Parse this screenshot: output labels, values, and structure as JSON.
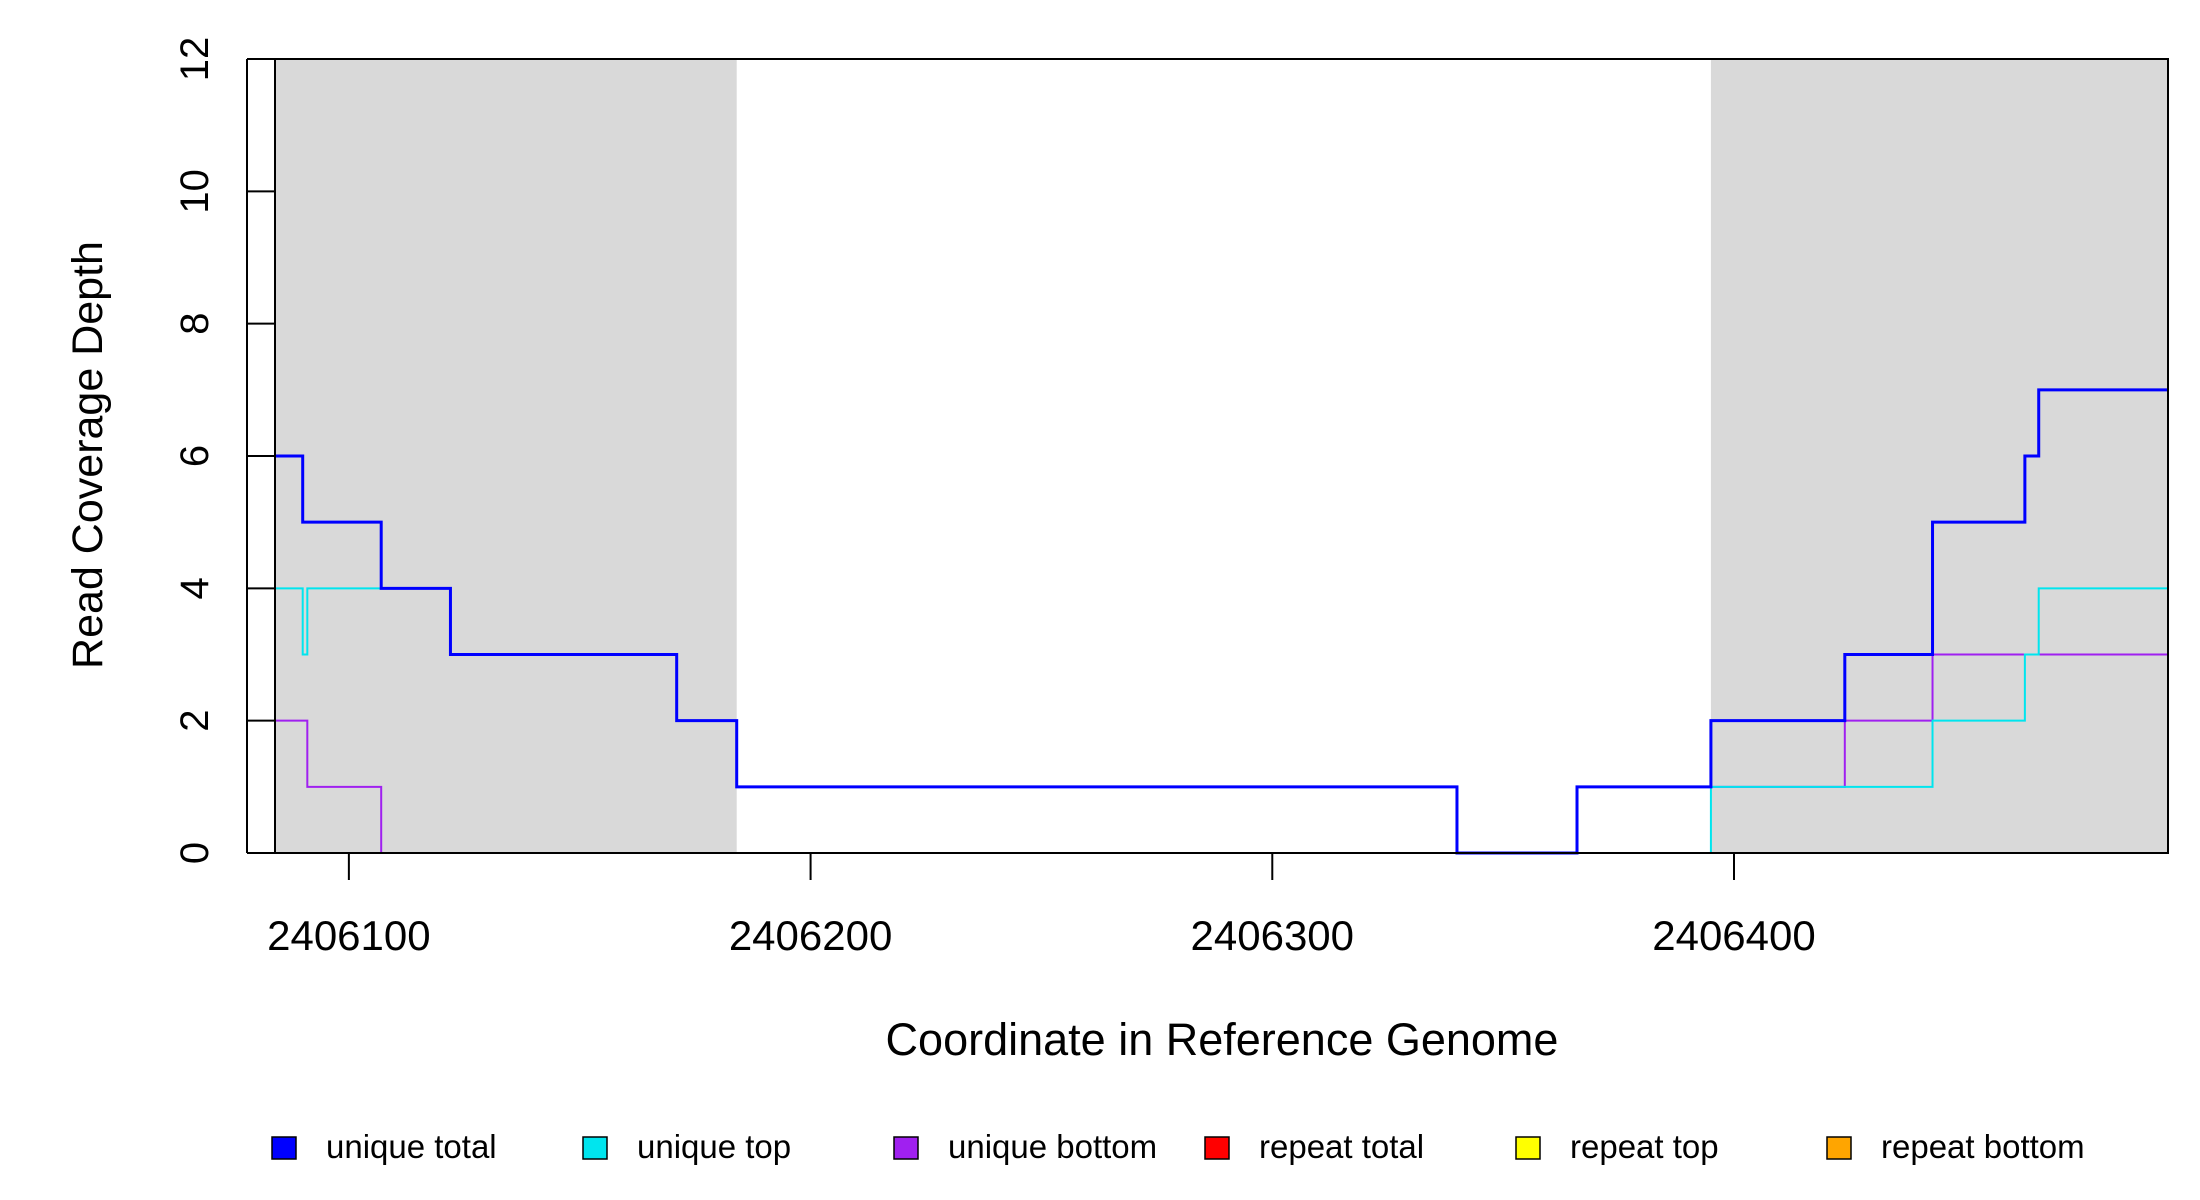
{
  "chart_data": {
    "type": "line",
    "step": true,
    "title": "",
    "xlabel": "Coordinate in Reference Genome",
    "ylabel": "Read Coverage Depth",
    "xlim": [
      2406084,
      2406494
    ],
    "ylim": [
      0,
      12
    ],
    "x_ticks": [
      2406100,
      2406200,
      2406300,
      2406400
    ],
    "y_ticks": [
      0,
      2,
      4,
      6,
      8,
      10,
      12
    ],
    "grid": false,
    "legend_position": "bottom",
    "shaded_regions": [
      {
        "start": 2406084,
        "end": 2406184,
        "color": "#d9d9d9"
      },
      {
        "start": 2406395,
        "end": 2406494,
        "color": "#d9d9d9"
      }
    ],
    "series": [
      {
        "name": "unique total",
        "color": "#0000ff",
        "points": [
          [
            2406084,
            6
          ],
          [
            2406090,
            5
          ],
          [
            2406107,
            4
          ],
          [
            2406122,
            3
          ],
          [
            2406171,
            2
          ],
          [
            2406184,
            1
          ],
          [
            2406340,
            0
          ],
          [
            2406366,
            1
          ],
          [
            2406395,
            2
          ],
          [
            2406424,
            3
          ],
          [
            2406443,
            5
          ],
          [
            2406463,
            6
          ],
          [
            2406466,
            7
          ],
          [
            2406494,
            7
          ]
        ]
      },
      {
        "name": "unique top",
        "color": "#00e5ee",
        "points": [
          [
            2406084,
            4
          ],
          [
            2406090,
            3
          ],
          [
            2406091,
            4
          ],
          [
            2406122,
            3
          ],
          [
            2406171,
            2
          ],
          [
            2406184,
            1
          ],
          [
            2406340,
            0
          ],
          [
            2406395,
            1
          ],
          [
            2406443,
            2
          ],
          [
            2406463,
            3
          ],
          [
            2406466,
            4
          ],
          [
            2406494,
            4
          ]
        ]
      },
      {
        "name": "unique bottom",
        "color": "#a020f0",
        "points": [
          [
            2406084,
            2
          ],
          [
            2406091,
            1
          ],
          [
            2406107,
            0
          ],
          [
            2406366,
            1
          ],
          [
            2406424,
            2
          ],
          [
            2406443,
            3
          ],
          [
            2406494,
            3
          ]
        ]
      },
      {
        "name": "repeat total",
        "color": "#ff0000",
        "points": [
          [
            2406084,
            0
          ],
          [
            2406494,
            0
          ]
        ]
      },
      {
        "name": "repeat top",
        "color": "#ffff00",
        "points": [
          [
            2406084,
            0
          ],
          [
            2406494,
            0
          ]
        ]
      },
      {
        "name": "repeat bottom",
        "color": "#ffa500",
        "points": [
          [
            2406084,
            0
          ],
          [
            2406494,
            0
          ]
        ]
      }
    ]
  }
}
